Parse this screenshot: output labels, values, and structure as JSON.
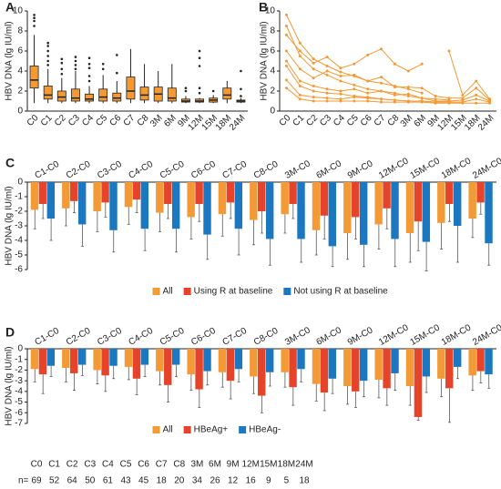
{
  "chart_data": [
    {
      "type": "box",
      "panel_label": "A",
      "ylabel": "HBV DNA (lg IU/ml)",
      "color": "#f39a36",
      "categories": [
        "C0",
        "C1",
        "C2",
        "C3",
        "C4",
        "C5",
        "C6",
        "C7",
        "C8",
        "3M",
        "6M",
        "9M",
        "12M",
        "15M",
        "18M",
        "24M"
      ],
      "ylim": [
        0,
        10
      ],
      "yticks": [
        0,
        2,
        4,
        6,
        8,
        10
      ],
      "boxes": [
        {
          "min": 0.8,
          "q1": 2.3,
          "median": 3.1,
          "q3": 4.5,
          "max": 7.6,
          "outliers": [
            8.5,
            9,
            9.3,
            9.6
          ]
        },
        {
          "min": 0.8,
          "q1": 1.2,
          "median": 1.6,
          "q3": 2.5,
          "max": 4.2,
          "outliers": [
            4.6,
            5,
            5.5,
            6,
            6.5,
            6.8
          ]
        },
        {
          "min": 0.8,
          "q1": 1.0,
          "median": 1.4,
          "q3": 2.0,
          "max": 3.3,
          "outliers": [
            3.7,
            4.2,
            4.8,
            5.2
          ]
        },
        {
          "min": 0.8,
          "q1": 1.0,
          "median": 1.3,
          "q3": 2.2,
          "max": 4.0,
          "outliers": [
            4.2,
            4.6,
            5.0,
            5.4
          ]
        },
        {
          "min": 0.8,
          "q1": 1.0,
          "median": 1.2,
          "q3": 1.7,
          "max": 2.5,
          "outliers": [
            3.0,
            3.5,
            4.3,
            4.7,
            5.3
          ]
        },
        {
          "min": 0.8,
          "q1": 1.0,
          "median": 1.4,
          "q3": 2.2,
          "max": 3.6,
          "outliers": [
            4.2,
            4.7
          ]
        },
        {
          "min": 0.8,
          "q1": 1.0,
          "median": 1.3,
          "q3": 1.8,
          "max": 3.0,
          "outliers": [
            3.8,
            5.6
          ]
        },
        {
          "min": 0.8,
          "q1": 1.2,
          "median": 2.0,
          "q3": 3.4,
          "max": 6.2,
          "outliers": []
        },
        {
          "min": 0.8,
          "q1": 1.1,
          "median": 1.6,
          "q3": 2.4,
          "max": 4.7,
          "outliers": []
        },
        {
          "min": 0.8,
          "q1": 1.0,
          "median": 1.7,
          "q3": 2.4,
          "max": 4.0,
          "outliers": []
        },
        {
          "min": 0.8,
          "q1": 1.0,
          "median": 1.3,
          "q3": 2.3,
          "max": 4.7,
          "outliers": []
        },
        {
          "min": 0.8,
          "q1": 0.9,
          "median": 1.0,
          "q3": 1.2,
          "max": 1.5,
          "outliers": [
            2.0,
            2.3
          ]
        },
        {
          "min": 0.8,
          "q1": 0.9,
          "median": 1.0,
          "q3": 1.2,
          "max": 1.3,
          "outliers": [
            1.8,
            2.3,
            4.5,
            5.3,
            6.0
          ]
        },
        {
          "min": 0.8,
          "q1": 0.9,
          "median": 1.1,
          "q3": 1.3,
          "max": 1.6,
          "outliers": [
            2.0
          ]
        },
        {
          "min": 0.8,
          "q1": 1.2,
          "median": 1.6,
          "q3": 2.3,
          "max": 3.0,
          "outliers": []
        },
        {
          "min": 0.8,
          "q1": 0.9,
          "median": 1.0,
          "q3": 1.1,
          "max": 1.3,
          "outliers": [
            1.5,
            2.2,
            4.0
          ]
        }
      ]
    },
    {
      "type": "line",
      "panel_label": "B",
      "ylabel": "HBV DNA (lg IU/ml)",
      "categories": [
        "C0",
        "C1",
        "C2",
        "C3",
        "C4",
        "C5",
        "C6",
        "C7",
        "C8",
        "3M",
        "6M",
        "9M",
        "12M",
        "15M",
        "18M",
        "24M"
      ],
      "ylim": [
        0,
        10
      ],
      "yticks": [
        0,
        2,
        4,
        6,
        8,
        10
      ],
      "series": [
        {
          "color": "#f39a36",
          "values": [
            9.6,
            6.8,
            5.2,
            4.5,
            3.9,
            3.5,
            3.0,
            2.8,
            2.5,
            2.2,
            1.8,
            null,
            null,
            null,
            null,
            1.2
          ]
        },
        {
          "color": "#f39a36",
          "values": [
            8.5,
            5.5,
            4.2,
            3.6,
            3.0,
            2.6,
            2.2,
            2.0,
            1.8,
            1.5,
            1.3,
            1.2,
            1.1,
            null,
            null,
            1.0
          ]
        },
        {
          "color": "#f39a36",
          "values": [
            7.6,
            6.0,
            4.8,
            5.4,
            4.3,
            4.7,
            5.6,
            6.2,
            4.7,
            4.0,
            4.7,
            null,
            6.0,
            1.6,
            3.0,
            1.2
          ]
        },
        {
          "color": "#f39a36",
          "values": [
            6.0,
            4.2,
            3.3,
            4.0,
            3.5,
            3.6,
            3.0,
            3.4,
            2.4,
            2.4,
            2.3,
            1.5,
            1.3,
            1.3,
            2.3,
            1.1
          ]
        },
        {
          "color": "#f39a36",
          "values": [
            5.0,
            3.0,
            2.5,
            2.2,
            2.0,
            2.2,
            1.8,
            2.0,
            1.6,
            1.7,
            1.3,
            1.0,
            1.0,
            1.1,
            1.6,
            1.0
          ]
        },
        {
          "color": "#f39a36",
          "values": [
            4.5,
            2.5,
            2.0,
            1.8,
            1.7,
            1.5,
            1.4,
            1.2,
            1.1,
            1.0,
            1.0,
            0.9,
            0.9,
            0.9,
            1.2,
            0.9
          ]
        },
        {
          "color": "#f39a36",
          "values": [
            3.1,
            1.6,
            1.4,
            1.3,
            1.2,
            1.4,
            1.3,
            1.2,
            1.1,
            1.0,
            1.0,
            0.9,
            0.9,
            0.9,
            null,
            0.9
          ]
        },
        {
          "color": "#f39a36",
          "values": [
            2.3,
            1.2,
            1.0,
            1.0,
            1.0,
            1.0,
            1.0,
            0.9,
            0.9,
            0.9,
            0.9,
            0.8,
            0.8,
            0.8,
            0.8,
            0.8
          ]
        }
      ]
    },
    {
      "type": "bar",
      "panel_label": "C",
      "ylabel": "HBV DNA (lg IU/ml)",
      "categories": [
        "C1-C0",
        "C2-C0",
        "C3-C0",
        "C4-C0",
        "C5-C0",
        "C6-C0",
        "C7-C0",
        "C8-C0",
        "3M-C0",
        "6M-C0",
        "9M-C0",
        "12M-C0",
        "15M-C0",
        "18M-C0",
        "24M-C0"
      ],
      "ylim": [
        -6,
        0
      ],
      "yticks": [
        0,
        -1,
        -2,
        -3,
        -4,
        -5,
        -6
      ],
      "series": [
        {
          "name": "All",
          "color": "#f39a36",
          "values": [
            -1.9,
            -1.8,
            -2.0,
            -1.7,
            -2.1,
            -2.4,
            -2.2,
            -2.6,
            -2.2,
            -3.3,
            -3.5,
            -2.9,
            -3.5,
            -2.8,
            -2.5
          ],
          "errors": [
            1.3,
            1.2,
            1.4,
            1.2,
            1.3,
            1.5,
            1.5,
            1.7,
            1.3,
            1.7,
            1.8,
            1.7,
            2.0,
            1.8,
            1.3
          ]
        },
        {
          "name": "Using R at baseline",
          "color": "#e5442a",
          "values": [
            -1.5,
            -1.3,
            -1.4,
            -1.2,
            -1.5,
            -1.5,
            -1.4,
            -2.0,
            -1.5,
            -2.3,
            -2.4,
            -1.8,
            -2.7,
            -1.5,
            -1.4
          ],
          "errors": [
            1.0,
            0.8,
            1.0,
            0.9,
            1.0,
            1.2,
            1.1,
            1.5,
            1.0,
            1.6,
            1.5,
            1.4,
            2.0,
            1.2,
            0.8
          ]
        },
        {
          "name": "Not using R at baseline",
          "color": "#1b77c0",
          "values": [
            -2.5,
            -2.9,
            -3.3,
            -3.2,
            -3.2,
            -3.6,
            -3.2,
            -3.9,
            -3.9,
            -4.4,
            -4.3,
            -3.9,
            -4.1,
            -3.0,
            -4.2
          ],
          "errors": [
            1.5,
            1.5,
            1.5,
            1.5,
            1.6,
            1.7,
            1.8,
            1.8,
            1.6,
            1.4,
            1.5,
            1.9,
            2.0,
            2.5,
            1.5
          ]
        }
      ]
    },
    {
      "type": "bar",
      "panel_label": "D",
      "ylabel": "HBV DNA (lg IU/ml)",
      "categories": [
        "C1-C0",
        "C2-C0",
        "C3-C0",
        "C4-C0",
        "C5-C0",
        "C6-C0",
        "C7-C0",
        "C8-C0",
        "3M-C0",
        "6M-C0",
        "9M-C0",
        "12M-C0",
        "15M-C0",
        "18M-C0",
        "24M-C0"
      ],
      "ylim": [
        -7,
        0
      ],
      "yticks": [
        0,
        -1,
        -2,
        -3,
        -4,
        -5,
        -6,
        -7
      ],
      "series": [
        {
          "name": "All",
          "color": "#f39a36",
          "values": [
            -1.9,
            -1.8,
            -2.0,
            -1.7,
            -2.1,
            -2.4,
            -2.2,
            -2.6,
            -2.2,
            -3.3,
            -3.5,
            -2.9,
            -3.5,
            -2.8,
            -2.5
          ],
          "errors": [
            1.2,
            1.3,
            1.3,
            1.2,
            1.3,
            1.5,
            1.4,
            1.6,
            1.4,
            1.6,
            1.7,
            1.7,
            1.8,
            1.7,
            1.4
          ]
        },
        {
          "name": "HBeAg+",
          "color": "#e5442a",
          "values": [
            -2.4,
            -2.3,
            -2.5,
            -2.8,
            -3.4,
            -3.8,
            -3.0,
            -4.4,
            -3.6,
            -4.1,
            -4.0,
            -3.7,
            -6.4,
            -3.7,
            -2.1
          ],
          "errors": [
            1.8,
            1.6,
            1.5,
            1.5,
            1.6,
            1.7,
            1.7,
            1.6,
            1.7,
            1.7,
            1.5,
            1.6,
            0.3,
            3.2,
            1.1
          ]
        },
        {
          "name": "HBeAg-",
          "color": "#1b77c0",
          "values": [
            -1.6,
            -1.5,
            -1.6,
            -1.5,
            -1.5,
            -2.1,
            -1.9,
            -2.2,
            -1.9,
            -2.8,
            -3.0,
            -2.3,
            -2.6,
            -1.7,
            -2.4
          ],
          "errors": [
            1.0,
            1.0,
            1.2,
            1.1,
            1.1,
            1.3,
            1.2,
            1.3,
            1.2,
            1.4,
            1.5,
            1.6,
            1.5,
            1.1,
            1.3
          ]
        }
      ]
    }
  ],
  "table": {
    "row_label": "n=",
    "columns": [
      "C0",
      "C1",
      "C2",
      "C3",
      "C4",
      "C5",
      "C6",
      "C7",
      "C8",
      "3M",
      "6M",
      "9M",
      "12M",
      "15M",
      "18M",
      "24M"
    ],
    "values": [
      69,
      52,
      64,
      50,
      61,
      43,
      45,
      18,
      20,
      34,
      26,
      12,
      16,
      9,
      5,
      18
    ]
  }
}
